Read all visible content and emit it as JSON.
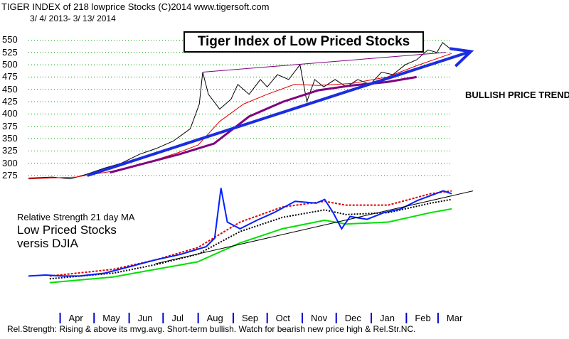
{
  "header": {
    "line1": "TIGER INDEX of  218 lowprice Stocks  (C)2014  www.tigersoft.com",
    "line2": "3/ 4/ 2013- 3/ 13/ 2014"
  },
  "annotations": {
    "chart_title": "Tiger Index of Low Priced Stocks",
    "trend_label": "BULLISH PRICE TREND",
    "rs_line1": "Relative Strength 21 day MA",
    "rs_line2": "Low Priced Stocks",
    "rs_line3": "versis DJIA",
    "footer": "Rel.Strength: Rising & above its mvg.avg. Short-term bullish. Watch for bearish new price high & Rel.Str.NC."
  },
  "colors": {
    "price": "#000000",
    "ma_short": "#e00000",
    "ma_long": "#800080",
    "trend_arrow": "#1a2de0",
    "rs_line": "#0020ff",
    "rs_upper_band": "#e00000",
    "rs_lower_band": "#00e000",
    "rs_ma": "#000000",
    "grid": "#00a000",
    "month_tick": "#0000cc"
  },
  "chart_data": {
    "type": "line",
    "title": "Tiger Index of Low Priced Stocks",
    "date_range": [
      "2013-03-04",
      "2014-03-13"
    ],
    "y_ticks": [
      275,
      300,
      325,
      350,
      375,
      400,
      425,
      450,
      475,
      500,
      525,
      550
    ],
    "ylim": [
      262,
      555
    ],
    "x_months": [
      "Apr",
      "May",
      "Jun",
      "Jul",
      "Aug",
      "Sep",
      "Oct",
      "Nov",
      "Dec",
      "Jan",
      "Feb",
      "Mar"
    ],
    "grid": true,
    "series": [
      {
        "key": "price",
        "dates": [
          "2013-03-04",
          "2013-03-25",
          "2013-04-10",
          "2013-04-25",
          "2013-05-10",
          "2013-05-25",
          "2013-06-10",
          "2013-06-25",
          "2013-07-10",
          "2013-07-25",
          "2013-08-02",
          "2013-08-05",
          "2013-08-10",
          "2013-08-20",
          "2013-08-30",
          "2013-09-05",
          "2013-09-15",
          "2013-09-25",
          "2013-10-01",
          "2013-10-10",
          "2013-10-20",
          "2013-10-30",
          "2013-11-05",
          "2013-11-12",
          "2013-11-20",
          "2013-11-30",
          "2013-12-10",
          "2013-12-20",
          "2013-12-31",
          "2014-01-10",
          "2014-01-20",
          "2014-01-31",
          "2014-02-10",
          "2014-02-20",
          "2014-02-28",
          "2014-03-05",
          "2014-03-13"
        ],
        "values": [
          270,
          272,
          268,
          278,
          290,
          300,
          318,
          330,
          345,
          370,
          420,
          485,
          440,
          410,
          430,
          460,
          440,
          470,
          455,
          480,
          470,
          500,
          425,
          470,
          455,
          470,
          455,
          470,
          460,
          485,
          480,
          500,
          510,
          530,
          525,
          545,
          530
        ]
      },
      {
        "key": "ma_short",
        "dates": [
          "2013-03-04",
          "2013-04-15",
          "2013-05-15",
          "2013-06-15",
          "2013-07-15",
          "2013-08-01",
          "2013-08-20",
          "2013-09-10",
          "2013-10-01",
          "2013-10-25",
          "2013-11-15",
          "2013-12-15",
          "2014-01-15",
          "2014-02-10",
          "2014-03-13"
        ],
        "values": [
          268,
          272,
          283,
          300,
          322,
          337,
          385,
          420,
          440,
          460,
          458,
          462,
          475,
          498,
          523
        ]
      },
      {
        "key": "ma_long",
        "dates": [
          "2013-05-15",
          "2013-06-15",
          "2013-07-15",
          "2013-08-15",
          "2013-09-15",
          "2013-10-15",
          "2013-11-15",
          "2013-12-15",
          "2014-01-15",
          "2014-02-10"
        ],
        "values": [
          281,
          300,
          318,
          340,
          395,
          425,
          448,
          458,
          465,
          475
        ]
      }
    ],
    "upper_trendline": {
      "dates": [
        "2013-08-05",
        "2014-03-08"
      ],
      "values": [
        485,
        525
      ]
    },
    "trend_arrow": {
      "dates": [
        "2013-04-25",
        "2014-03-30"
      ],
      "values": [
        275,
        527
      ]
    },
    "relative_strength": {
      "note": "21-day MA vs DJIA; plotted below the price panel (no numeric axis shown)"
    }
  }
}
